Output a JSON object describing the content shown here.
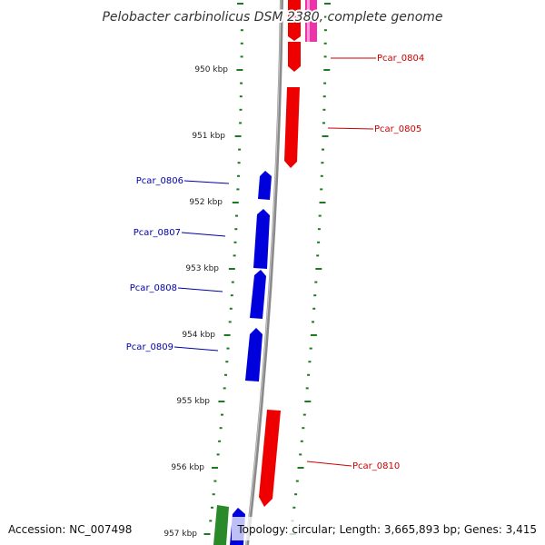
{
  "map": {
    "title": "Pelobacter carbinolicus DSM 2380, complete genome",
    "accession": "Accession: NC_007498",
    "summary": "Topology: circular; Length: 3,665,893 bp; Genes: 3,415"
  },
  "colors": {
    "backbone": "#8a8a8a",
    "tick": "#1e7a1e",
    "forward_gene": "#ee0000",
    "forward_label": "#cc0000",
    "reverse_gene": "#0000dd",
    "reverse_label": "#0000aa",
    "rna_gene": "#ee33aa",
    "other_gene": "#2a8a2a"
  },
  "kbp_labels": [
    "950 kbp",
    "951 kbp",
    "952 kbp",
    "953 kbp",
    "954 kbp",
    "955 kbp",
    "956 kbp",
    "957 kbp"
  ],
  "gene_labels": {
    "pcar_0804": "Pcar_0804",
    "pcar_0805": "Pcar_0805",
    "pcar_0806": "Pcar_0806",
    "pcar_0807": "Pcar_0807",
    "pcar_0808": "Pcar_0808",
    "pcar_0809": "Pcar_0809",
    "pcar_0810": "Pcar_0810"
  }
}
